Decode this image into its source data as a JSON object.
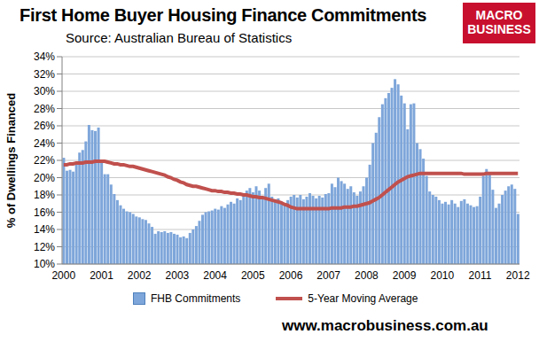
{
  "chart_data": {
    "type": "bar",
    "title": "First Home Buyer Housing Finance Commitments",
    "subtitle": "Source: Australian Bureau of Statistics",
    "y_label": "% of Dwellings Financed",
    "logo": "MACRO BUSINESS",
    "source_url": "www.macrobusiness.com.au",
    "legend": "bottom",
    "grid": true,
    "ylim": [
      10,
      34
    ],
    "yticks": [
      {
        "value": 10,
        "label": "10%"
      },
      {
        "value": 12,
        "label": "12%"
      },
      {
        "value": 14,
        "label": "14%"
      },
      {
        "value": 16,
        "label": "16%"
      },
      {
        "value": 18,
        "label": "18%"
      },
      {
        "value": 20,
        "label": "20%"
      },
      {
        "value": 22,
        "label": "22%"
      },
      {
        "value": 24,
        "label": "24%"
      },
      {
        "value": 26,
        "label": "26%"
      },
      {
        "value": 28,
        "label": "28%"
      },
      {
        "value": 30,
        "label": "30%"
      },
      {
        "value": 32,
        "label": "32%"
      },
      {
        "value": 34,
        "label": "34%"
      }
    ],
    "categories": [
      "2000",
      null,
      null,
      null,
      null,
      null,
      null,
      null,
      null,
      null,
      null,
      null,
      "2001",
      null,
      null,
      null,
      null,
      null,
      null,
      null,
      null,
      null,
      null,
      null,
      "2002",
      null,
      null,
      null,
      null,
      null,
      null,
      null,
      null,
      null,
      null,
      null,
      "2003",
      null,
      null,
      null,
      null,
      null,
      null,
      null,
      null,
      null,
      null,
      null,
      "2004",
      null,
      null,
      null,
      null,
      null,
      null,
      null,
      null,
      null,
      null,
      null,
      "2005",
      null,
      null,
      null,
      null,
      null,
      null,
      null,
      null,
      null,
      null,
      null,
      "2006",
      null,
      null,
      null,
      null,
      null,
      null,
      null,
      null,
      null,
      null,
      null,
      "2007",
      null,
      null,
      null,
      null,
      null,
      null,
      null,
      null,
      null,
      null,
      null,
      "2008",
      null,
      null,
      null,
      null,
      null,
      null,
      null,
      null,
      null,
      null,
      null,
      "2009",
      null,
      null,
      null,
      null,
      null,
      null,
      null,
      null,
      null,
      null,
      null,
      "2010",
      null,
      null,
      null,
      null,
      null,
      null,
      null,
      null,
      null,
      null,
      null,
      "2011",
      null,
      null,
      null,
      null,
      null,
      null,
      null,
      null,
      null,
      null,
      null,
      "2012"
    ],
    "series": [
      {
        "name": "FHB Commitments",
        "type": "bar",
        "color": "#7ea6da",
        "values": [
          22.3,
          20.8,
          20.9,
          20.7,
          21.5,
          22.9,
          23.2,
          24.2,
          26.1,
          25.5,
          25.4,
          25.8,
          22.1,
          20.4,
          20.4,
          19.2,
          18.1,
          17.4,
          16.8,
          16.4,
          16.1,
          16.0,
          15.8,
          15.5,
          15.4,
          15.2,
          15.1,
          14.7,
          14.3,
          13.5,
          13.8,
          13.7,
          13.8,
          13.6,
          13.7,
          13.5,
          13.4,
          13.1,
          13.2,
          13.0,
          13.6,
          14.0,
          14.4,
          15.0,
          15.7,
          16.0,
          16.1,
          16.2,
          16.4,
          16.3,
          16.7,
          16.5,
          16.9,
          17.2,
          17.0,
          17.6,
          17.4,
          18.0,
          18.5,
          18.8,
          18.3,
          19.0,
          18.5,
          17.9,
          18.8,
          19.3,
          17.8,
          17.5,
          17.6,
          17.2,
          17.0,
          17.4,
          17.8,
          18.0,
          17.7,
          18.0,
          17.5,
          17.8,
          18.2,
          17.9,
          17.6,
          17.9,
          17.7,
          18.1,
          18.2,
          19.3,
          18.9,
          20.0,
          19.6,
          19.3,
          18.7,
          19.0,
          18.3,
          17.9,
          18.4,
          19.0,
          20.0,
          21.5,
          24.0,
          25.2,
          27.0,
          28.5,
          29.2,
          29.8,
          30.4,
          31.4,
          30.8,
          29.5,
          28.6,
          25.6,
          28.5,
          28.6,
          24.0,
          23.3,
          22.2,
          20.2,
          18.4,
          18.0,
          17.8,
          17.4,
          17.0,
          17.2,
          16.9,
          17.4,
          17.0,
          16.6,
          17.3,
          17.5,
          17.0,
          16.8,
          16.6,
          16.7,
          17.8,
          20.2,
          21.0,
          20.5,
          18.6,
          16.5,
          17.0,
          18.0,
          18.5,
          19.0,
          19.2,
          18.7,
          15.8
        ]
      },
      {
        "name": "5-Year Moving Average",
        "type": "line",
        "color": "#c0504d",
        "values": [
          21.5,
          21.5,
          21.6,
          21.6,
          21.7,
          21.7,
          21.7,
          21.8,
          21.8,
          21.8,
          21.9,
          21.9,
          21.9,
          21.9,
          21.8,
          21.7,
          21.6,
          21.6,
          21.5,
          21.5,
          21.4,
          21.3,
          21.3,
          21.2,
          21.1,
          21.0,
          20.9,
          20.8,
          20.7,
          20.6,
          20.5,
          20.4,
          20.3,
          20.1,
          20.0,
          19.8,
          19.7,
          19.5,
          19.4,
          19.2,
          19.1,
          19.0,
          19.0,
          18.9,
          18.8,
          18.7,
          18.6,
          18.5,
          18.5,
          18.4,
          18.4,
          18.3,
          18.3,
          18.2,
          18.2,
          18.1,
          18.1,
          18.0,
          18.0,
          17.9,
          17.8,
          17.8,
          17.7,
          17.7,
          17.6,
          17.5,
          17.4,
          17.3,
          17.2,
          17.1,
          16.9,
          16.8,
          16.6,
          16.5,
          16.4,
          16.4,
          16.4,
          16.4,
          16.4,
          16.4,
          16.4,
          16.4,
          16.4,
          16.4,
          16.4,
          16.5,
          16.5,
          16.5,
          16.5,
          16.6,
          16.6,
          16.6,
          16.7,
          16.7,
          16.8,
          16.9,
          17.0,
          17.1,
          17.3,
          17.5,
          17.7,
          18.0,
          18.3,
          18.6,
          18.9,
          19.2,
          19.5,
          19.7,
          19.9,
          20.1,
          20.2,
          20.3,
          20.4,
          20.5,
          20.5,
          20.5,
          20.5,
          20.5,
          20.5,
          20.5,
          20.5,
          20.5,
          20.5,
          20.5,
          20.5,
          20.5,
          20.5,
          20.4,
          20.4,
          20.4,
          20.4,
          20.4,
          20.4,
          20.4,
          20.5,
          20.5,
          20.5,
          20.5,
          20.5,
          20.5,
          20.5,
          20.5,
          20.5,
          20.5,
          20.5
        ]
      }
    ]
  }
}
